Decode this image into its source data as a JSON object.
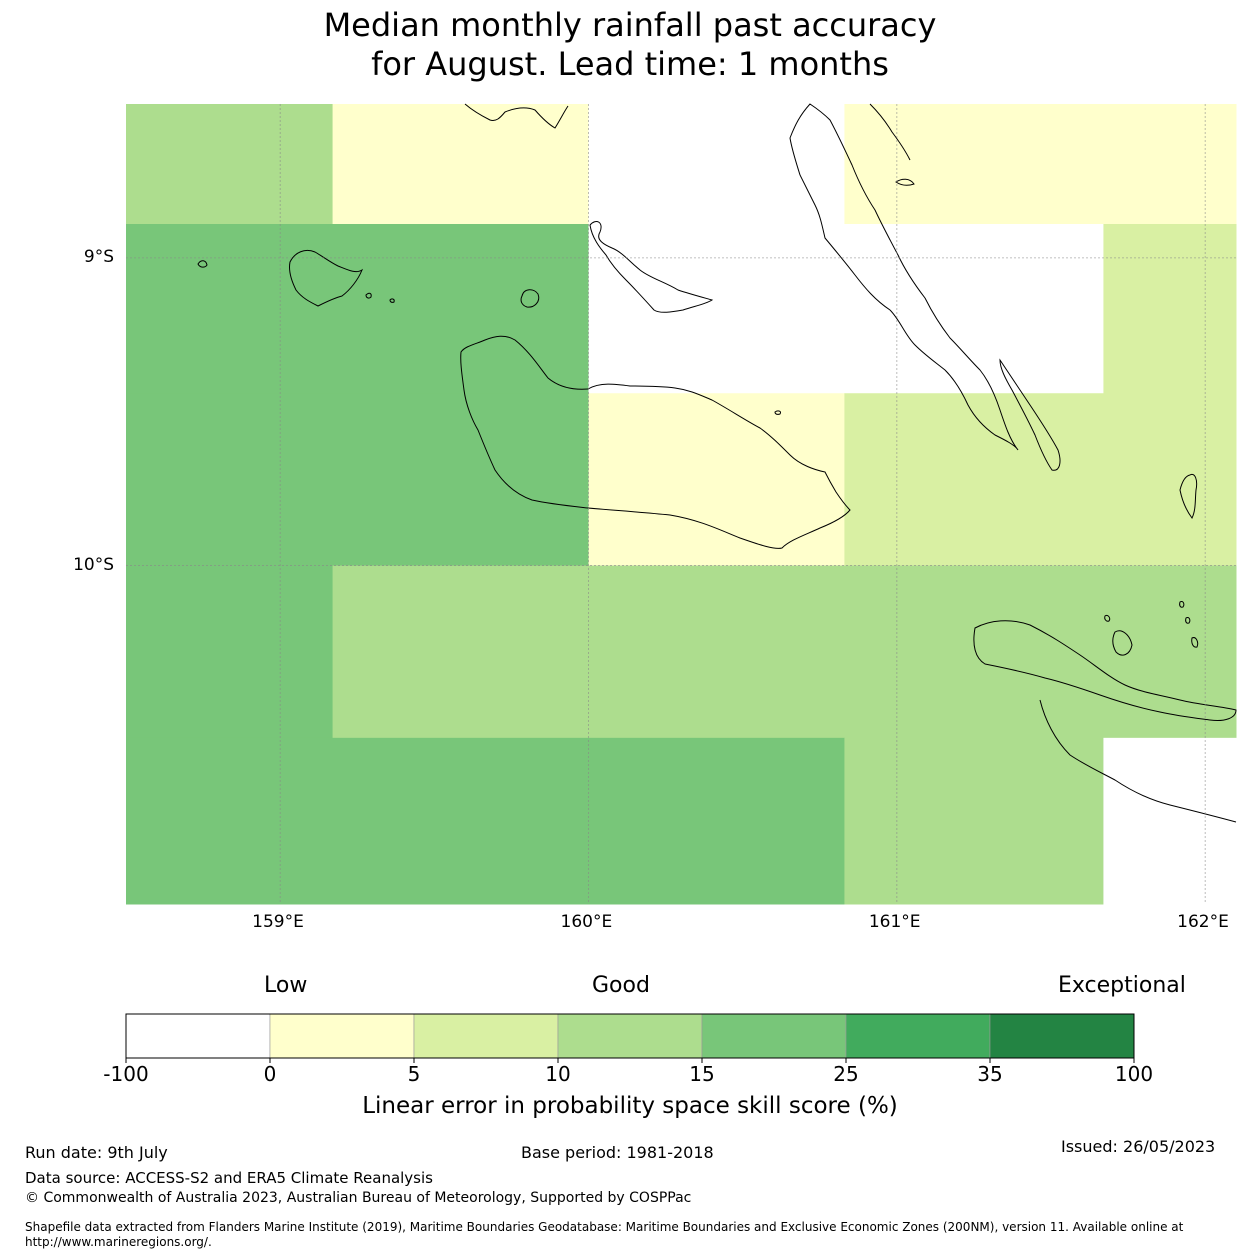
{
  "header": {
    "title_line1": "Median monthly rainfall past accuracy",
    "title_line2": "for August. Lead time: 1 months"
  },
  "map": {
    "region": "Solomon Islands",
    "lon_range": [
      158.5,
      162.1
    ],
    "lat_range": [
      -8.5,
      -11.1
    ],
    "lat_ticks": [
      {
        "value": -9,
        "label": "9°S"
      },
      {
        "value": -10,
        "label": "10°S"
      }
    ],
    "lon_ticks": [
      {
        "value": 159,
        "label": "159°E"
      },
      {
        "value": 160,
        "label": "160°E"
      },
      {
        "value": 161,
        "label": "161°E"
      },
      {
        "value": 162,
        "label": "162°E"
      }
    ],
    "grid_cells": [
      {
        "lon": [
          158.5,
          159.17
        ],
        "lat": [
          -8.5,
          -8.89
        ],
        "category": 3
      },
      {
        "lon": [
          159.17,
          160.0
        ],
        "lat": [
          -8.5,
          -8.89
        ],
        "category": 1
      },
      {
        "lon": [
          160.0,
          160.83
        ],
        "lat": [
          -8.5,
          -8.89
        ],
        "category": 0
      },
      {
        "lon": [
          160.83,
          162.1
        ],
        "lat": [
          -8.5,
          -8.89
        ],
        "category": 1
      },
      {
        "lon": [
          158.5,
          160.0
        ],
        "lat": [
          -8.89,
          -9.44
        ],
        "category": 4
      },
      {
        "lon": [
          160.0,
          161.67
        ],
        "lat": [
          -8.89,
          -9.44
        ],
        "category": 0
      },
      {
        "lon": [
          161.67,
          162.1
        ],
        "lat": [
          -8.89,
          -9.44
        ],
        "category": 2
      },
      {
        "lon": [
          158.5,
          160.0
        ],
        "lat": [
          -9.44,
          -10.0
        ],
        "category": 4
      },
      {
        "lon": [
          160.0,
          160.83
        ],
        "lat": [
          -9.44,
          -10.0
        ],
        "category": 1
      },
      {
        "lon": [
          160.83,
          162.1
        ],
        "lat": [
          -9.44,
          -10.0
        ],
        "category": 2
      },
      {
        "lon": [
          158.5,
          159.17
        ],
        "lat": [
          -10.0,
          -10.56
        ],
        "category": 4
      },
      {
        "lon": [
          159.17,
          162.1
        ],
        "lat": [
          -10.0,
          -10.56
        ],
        "category": 3
      },
      {
        "lon": [
          158.5,
          160.83
        ],
        "lat": [
          -10.56,
          -11.1
        ],
        "category": 4
      },
      {
        "lon": [
          160.83,
          161.67
        ],
        "lat": [
          -10.56,
          -11.1
        ],
        "category": 3
      },
      {
        "lon": [
          161.67,
          162.1
        ],
        "lat": [
          -10.56,
          -11.1
        ],
        "category": 0
      }
    ]
  },
  "legend": {
    "low_label": "Low",
    "good_label": "Good",
    "exceptional_label": "Exceptional",
    "title": "Linear error in probability space skill score (%)",
    "ticks": [
      "-100",
      "0",
      "5",
      "10",
      "15",
      "25",
      "35",
      "100"
    ],
    "colors": [
      "#ffffff",
      "#ffffcc",
      "#d9f0a3",
      "#addd8e",
      "#78c679",
      "#41ab5d",
      "#238443"
    ]
  },
  "footer": {
    "run_date": "Run date: 9th July",
    "base_period": "Base period: 1981-2018",
    "issued": "Issued: 26/05/2023",
    "data_source": "Data source: ACCESS-S2 and ERA5 Climate Reanalysis",
    "copyright": "© Commonwealth of Australia 2023, Australian Bureau of Meteorology, Supported by COSPPac",
    "shapefile_line1": "Shapefile data extracted from Flanders Marine Institute (2019), Maritime Boundaries Geodatabase: Maritime Boundaries and Exclusive Economic Zones (200NM), version 11. Available online at",
    "shapefile_line2": "http://www.marineregions.org/."
  }
}
